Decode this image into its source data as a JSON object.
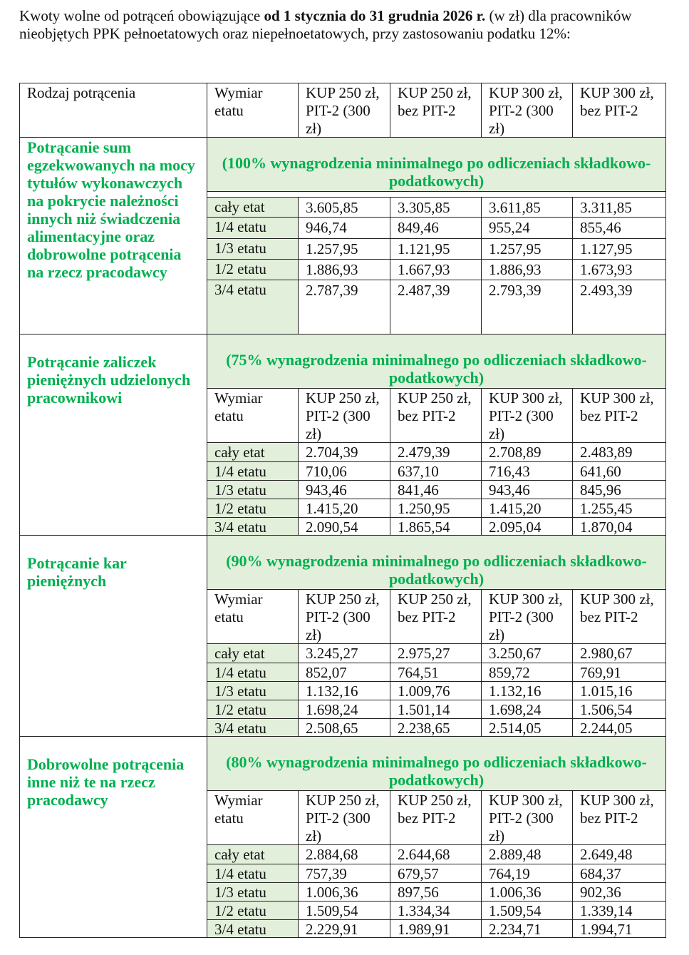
{
  "intro": {
    "before": "Kwoty wolne od potrąceń obowiązujące ",
    "bold": "od 1 stycznia do 31 grudnia 2026 r.",
    "after": " (w zł)  dla pracowników nieobjętych PPK pełnoetatowych oraz niepełnoetatowych, przy zastosowaniu podatku 12%:"
  },
  "colors": {
    "green_text": "#00b050",
    "green_bg": "#e2efda"
  },
  "header": {
    "type": "Rodzaj potrącenia",
    "etat": "Wymiar etatu",
    "cols": [
      "KUP 250 zł, PIT-2 (300 zł)",
      "KUP 250 zł, bez PIT-2",
      "KUP 300 zł, PIT-2 (300 zł)",
      "KUP 300 zł, bez PIT-2"
    ]
  },
  "row_labels": [
    "cały etat",
    "1/4 etatu",
    "1/3 etatu",
    "1/2 etatu",
    "3/4 etatu"
  ],
  "sections": [
    {
      "title": "Potrącanie sum egzekwowanych na mocy tytułów wykonawczych na pokrycie należności innych niż świadczenia alimentacyjne oraz dobrowolne potrącenia na rzecz pracodawcy",
      "banner": "(100% wynagrodzenia minimalnego po odliczeniach składkowo-podatkowych)",
      "rows": [
        [
          "3.605,85",
          "3.305,85",
          "3.611,85",
          "3.311,85"
        ],
        [
          "946,74",
          "849,46",
          "955,24",
          "855,46"
        ],
        [
          "1.257,95",
          "1.121,95",
          "1.257,95",
          "1.127,95"
        ],
        [
          "1.886,93",
          "1.667,93",
          "1.886,93",
          "1.673,93"
        ],
        [
          "2.787,39",
          "2.487,39",
          "2.793,39",
          "2.493,39"
        ]
      ]
    },
    {
      "title": "Potrącanie zaliczek pieniężnych udzielonych pracownikowi",
      "banner": "(75% wynagrodzenia minimalnego po odliczeniach składkowo-podatkowych)",
      "rows": [
        [
          "2.704,39",
          "2.479,39",
          "2.708,89",
          "2.483,89"
        ],
        [
          "710,06",
          "637,10",
          "716,43",
          "641,60"
        ],
        [
          "943,46",
          "841,46",
          "943,46",
          "845,96"
        ],
        [
          "1.415,20",
          "1.250,95",
          "1.415,20",
          "1.255,45"
        ],
        [
          "2.090,54",
          "1.865,54",
          "2.095,04",
          "1.870,04"
        ]
      ]
    },
    {
      "title": "Potrącanie kar pieniężnych",
      "banner": "(90% wynagrodzenia minimalnego po odliczeniach składkowo-podatkowych)",
      "rows": [
        [
          "3.245,27",
          "2.975,27",
          "3.250,67",
          "2.980,67"
        ],
        [
          "852,07",
          "764,51",
          "859,72",
          "769,91"
        ],
        [
          "1.132,16",
          "1.009,76",
          "1.132,16",
          "1.015,16"
        ],
        [
          "1.698,24",
          "1.501,14",
          "1.698,24",
          "1.506,54"
        ],
        [
          "2.508,65",
          "2.238,65",
          "2.514,05",
          "2.244,05"
        ]
      ]
    },
    {
      "title": "Dobrowolne potrącenia inne niż te na rzecz pracodawcy",
      "banner": "(80% wynagrodzenia minimalnego po odliczeniach składkowo-podatkowych)",
      "rows": [
        [
          "2.884,68",
          "2.644,68",
          "2.889,48",
          "2.649,48"
        ],
        [
          "757,39",
          "679,57",
          "764,19",
          "684,37"
        ],
        [
          "1.006,36",
          "897,56",
          "1.006,36",
          "902,36"
        ],
        [
          "1.509,54",
          "1.334,34",
          "1.509,54",
          "1.339,14"
        ],
        [
          "2.229,91",
          "1.989,91",
          "2.234,71",
          "1.994,71"
        ]
      ]
    }
  ]
}
